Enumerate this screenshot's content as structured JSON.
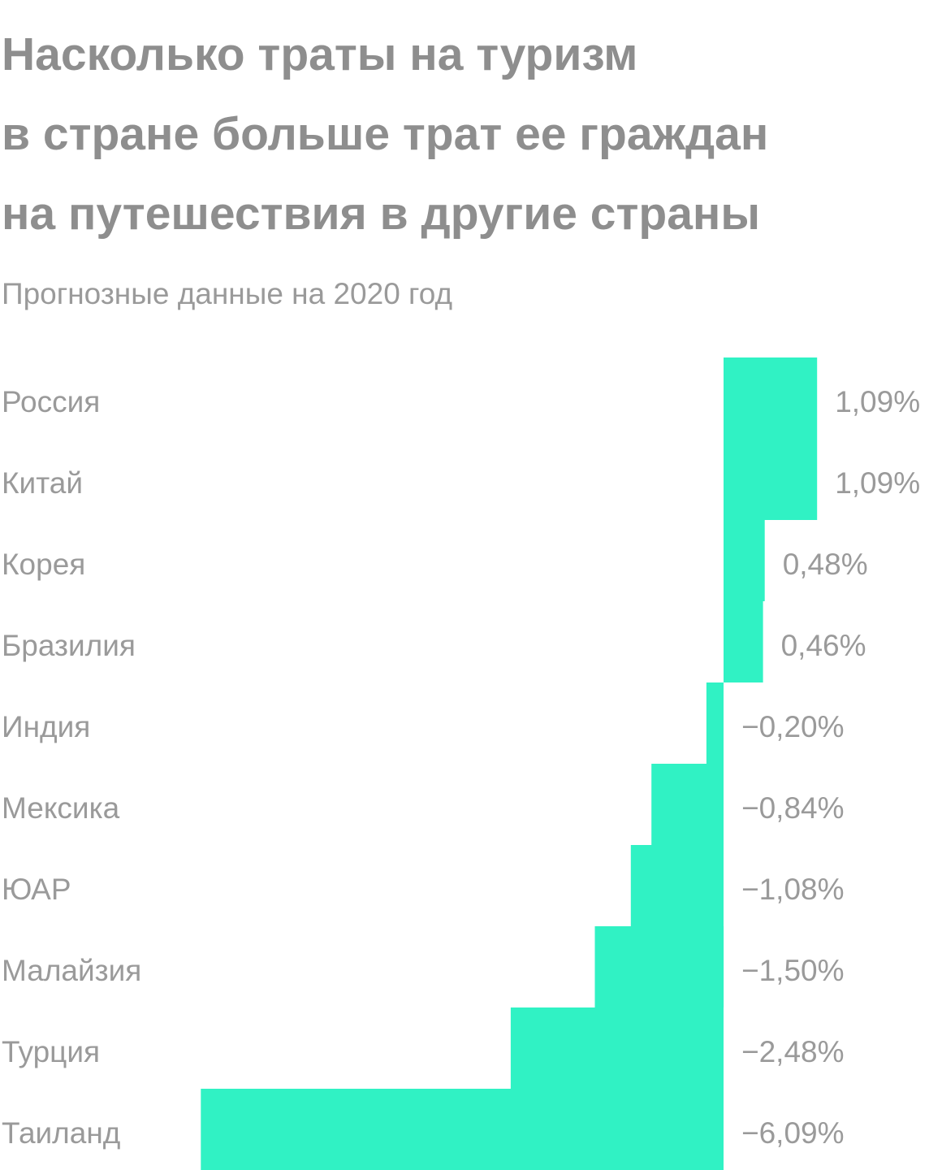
{
  "title_lines": [
    "Насколько траты на туризм",
    "в стране больше трат ее граждан",
    "на путешествия в другие страны"
  ],
  "subtitle": "Прогнозные данные на 2020 год",
  "colors": {
    "bar": "#30f2c4",
    "text": "#9a9a9a",
    "title": "#8e8e8e"
  },
  "chart_data": {
    "type": "bar",
    "orientation": "horizontal",
    "title": "Насколько траты на туризм в стране больше трат ее граждан на путешествия в другие страны",
    "subtitle": "Прогнозные данные на 2020 год",
    "categories": [
      "Россия",
      "Китай",
      "Корея",
      "Бразилия",
      "Индия",
      "Мексика",
      "ЮАР",
      "Малайзия",
      "Турция",
      "Таиланд"
    ],
    "values": [
      1.09,
      1.09,
      0.48,
      0.46,
      -0.2,
      -0.84,
      -1.08,
      -1.5,
      -2.48,
      -6.09
    ],
    "value_labels": [
      "1,09%",
      "1,09%",
      "0,48%",
      "0,46%",
      "−0,20%",
      "−0,84%",
      "−1,08%",
      "−1,50%",
      "−2,48%",
      "−6,09%"
    ],
    "unit": "%",
    "grid": false,
    "legend": "none"
  }
}
